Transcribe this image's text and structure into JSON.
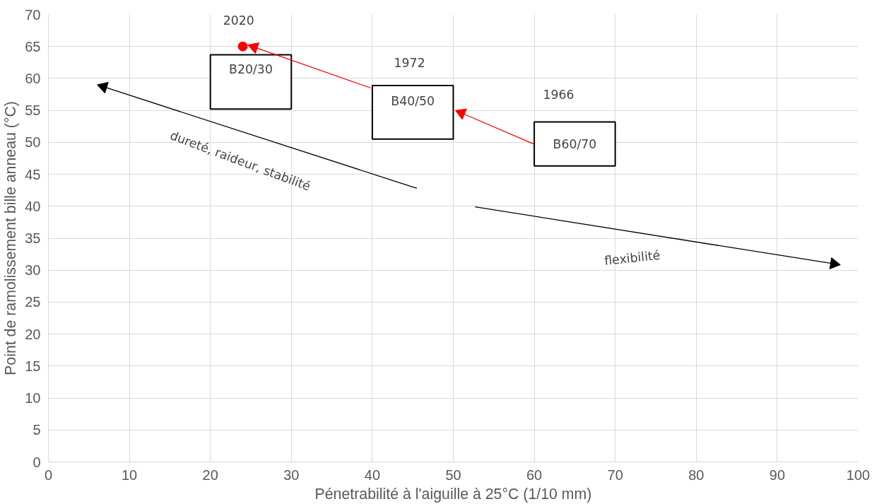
{
  "chart_data": {
    "type": "bar",
    "xlabel": "Pénetrabilité à l'aiguille à 25°C (1/10 mm)",
    "ylabel": "Point de ramolissement bille anneau (°C)",
    "xlim": [
      0,
      100
    ],
    "ylim": [
      0,
      70
    ],
    "xticks": [
      0,
      10,
      20,
      30,
      40,
      50,
      60,
      70,
      80,
      90,
      100
    ],
    "yticks": [
      0,
      5,
      10,
      15,
      20,
      25,
      30,
      35,
      40,
      45,
      50,
      55,
      60,
      65,
      70
    ],
    "grid": true,
    "series": [
      {
        "x": [
          25,
          45,
          65
        ],
        "base": [
          55.2,
          50.5,
          46.3
        ],
        "values": [
          8.5,
          8.4,
          6.9
        ],
        "color": "#ffffff"
      },
      {
        "type": "scatter",
        "x": [
          24
        ],
        "values": [
          65
        ],
        "color": "#ff0000",
        "marker": "circle"
      },
      {
        "type": "line",
        "x": [
          60,
          51
        ],
        "values": [
          49.7,
          54.6
        ],
        "color": "#ff0000"
      },
      {
        "type": "line",
        "x": [
          39.8,
          25.4
        ],
        "values": [
          58.5,
          64.9
        ],
        "color": "#ff0000"
      },
      {
        "type": "line",
        "x": [
          45.5,
          6.8
        ],
        "values": [
          42.8,
          58.7
        ],
        "color": "#000000"
      },
      {
        "type": "line",
        "x": [
          52.7,
          97.0
        ],
        "values": [
          39.9,
          31.0
        ],
        "color": "#000000"
      }
    ],
    "annotations": [
      "B20/30",
      "B40/50",
      "B60/70",
      "2020",
      "1972",
      "1966",
      "dureté, raideur, stabilité",
      "flexibilité"
    ]
  }
}
